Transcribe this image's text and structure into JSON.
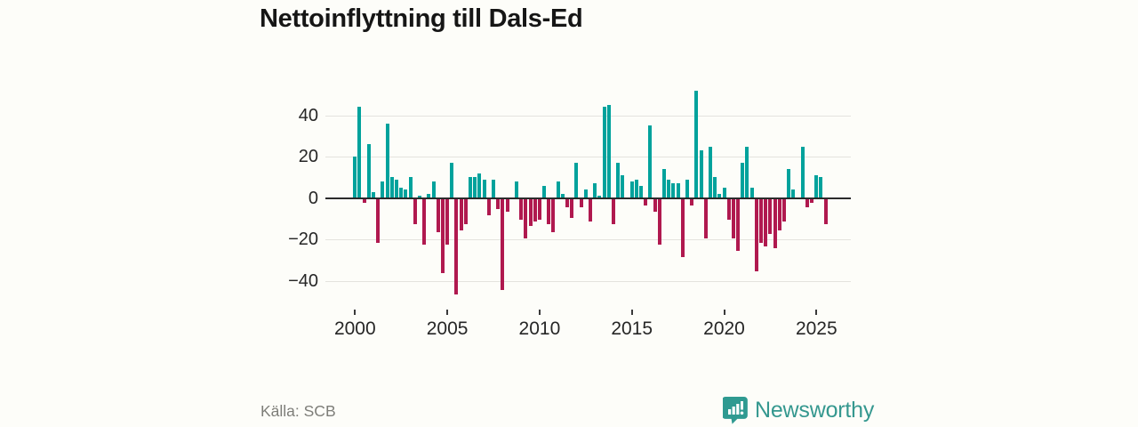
{
  "title": "Nettoinflyttning till Dals-Ed",
  "source": "Källa: SCB",
  "brand": {
    "name": "Newsworthy",
    "logo_icon": "bar-chart-pin-icon",
    "color": "#35988f"
  },
  "colors": {
    "positive_bar": "#00a29c",
    "negative_bar": "#b0194f",
    "zero_line": "#2b2b2b",
    "gridline": "#e4e3de",
    "background": "#fdfdf9"
  },
  "chart_data": {
    "type": "bar",
    "title": "Nettoinflyttning till Dals-Ed",
    "xlabel": "",
    "ylabel": "",
    "frequency": "quarterly",
    "start_year": 2000,
    "start_quarter": 1,
    "x_tick_years": [
      2000,
      2005,
      2010,
      2015,
      2020,
      2025
    ],
    "y_ticks": [
      40,
      20,
      0,
      -20,
      -40
    ],
    "y_tick_labels": [
      "40",
      "20",
      "0",
      "−20",
      "−40"
    ],
    "ylim": [
      -50,
      56
    ],
    "grid": true,
    "legend": "none",
    "series": [
      {
        "name": "Nettoinflyttning",
        "values": [
          20,
          44,
          -2,
          26,
          3,
          -21,
          8,
          36,
          10,
          9,
          5,
          4,
          10,
          -12,
          1,
          -22,
          2,
          8,
          -16,
          -36,
          -22,
          17,
          -46,
          -15,
          -12,
          10,
          10,
          12,
          9,
          -8,
          9,
          -5,
          -44,
          -6,
          0,
          8,
          -10,
          -19,
          -13,
          -11,
          -10,
          6,
          -12,
          -16,
          8,
          2,
          -4,
          -9,
          17,
          -4,
          4,
          -11,
          7,
          1,
          44,
          45,
          -12,
          17,
          11,
          0,
          8,
          9,
          6,
          -3,
          35,
          -6,
          -22,
          14,
          9,
          7,
          7,
          -28,
          9,
          -3,
          52,
          23,
          -19,
          25,
          10,
          2,
          5,
          -10,
          -19,
          -25,
          17,
          25,
          5,
          -35,
          -21,
          -23,
          -17,
          -24,
          -15,
          -11,
          14,
          4,
          0,
          25,
          -4,
          -2,
          11,
          10,
          -12
        ]
      }
    ]
  }
}
